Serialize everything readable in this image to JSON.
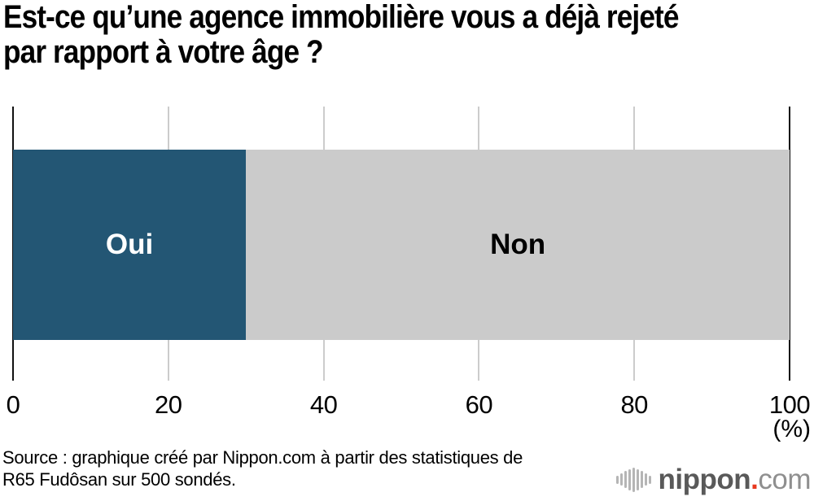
{
  "title": "Est-ce qu’une agence immobilière vous a déjà rejeté\npar rapport à votre âge ?",
  "chart_data": {
    "type": "bar",
    "orientation": "horizontal",
    "stacked": true,
    "title": "Est-ce qu’une agence immobilière vous a déjà rejeté par rapport à votre âge ?",
    "categories": [
      "Oui",
      "Non"
    ],
    "values": [
      30,
      70
    ],
    "series": [
      {
        "name": "Oui",
        "value": 30,
        "color": "#235674",
        "label_color": "#ffffff"
      },
      {
        "name": "Non",
        "value": 70,
        "color": "#cbcbcb",
        "label_color": "#000000"
      }
    ],
    "xlim": [
      0,
      100
    ],
    "x_ticks": [
      0,
      20,
      40,
      60,
      80,
      100
    ],
    "unit_label": "(%)",
    "grid": true,
    "legend": "none",
    "note": "Labels drawn inside bar segments"
  },
  "source": "Source : graphique créé par Nippon.com à partir des statistiques de\nR65 Fudôsan sur 500 sondés.",
  "logo": {
    "text_main": "nippon",
    "dot": ".",
    "text_suffix": "com",
    "colors": {
      "main": "#595959",
      "dot": "#e8391f",
      "suffix": "#8f8f8f",
      "icon": "#b5b5b5"
    }
  }
}
